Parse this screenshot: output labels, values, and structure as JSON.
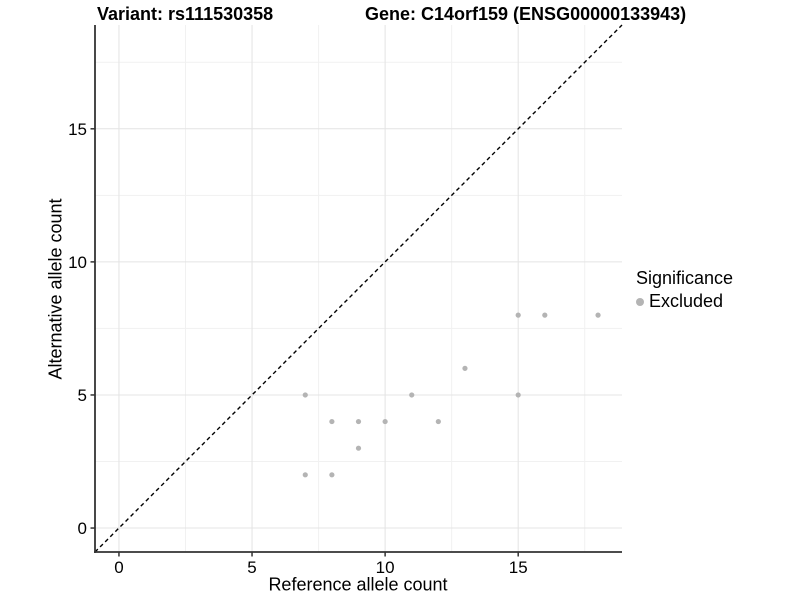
{
  "header": {
    "variant_title": "Variant: rs111530358",
    "gene_title": "Gene: C14orf159 (ENSG00000133943)"
  },
  "axes": {
    "x_label": "Reference allele count",
    "y_label": "Alternative allele count"
  },
  "legend": {
    "title": "Significance",
    "items": [
      {
        "label": "Excluded",
        "color": "#b4b4b4"
      }
    ]
  },
  "colors": {
    "background": "#ffffff",
    "point": "#b4b4b4",
    "grid_major": "#e4e4e4",
    "grid_minor": "#f1f1f1",
    "axis_line": "#333333",
    "reference_line": "#000000",
    "text": "#000000"
  },
  "chart_data": {
    "type": "scatter",
    "title": "Variant: rs111530358    Gene: C14orf159 (ENSG00000133943)",
    "xlabel": "Reference allele count",
    "ylabel": "Alternative allele count",
    "xlim": [
      -0.9,
      18.9
    ],
    "ylim": [
      -0.9,
      18.9
    ],
    "xticks": [
      0,
      5,
      10,
      15
    ],
    "yticks": [
      0,
      5,
      10,
      15
    ],
    "x_minor_ticks": [
      2.5,
      7.5,
      12.5,
      17.5
    ],
    "y_minor_ticks": [
      2.5,
      7.5,
      12.5,
      17.5
    ],
    "grid": true,
    "legend_position": "right",
    "reference_line": {
      "type": "identity",
      "slope": 1,
      "intercept": 0,
      "style": "dashed"
    },
    "series": [
      {
        "name": "Excluded",
        "color": "#b4b4b4",
        "points": [
          [
            7,
            2
          ],
          [
            7,
            5
          ],
          [
            8,
            2
          ],
          [
            8,
            4
          ],
          [
            9,
            3
          ],
          [
            9,
            4
          ],
          [
            10,
            4
          ],
          [
            11,
            5
          ],
          [
            12,
            4
          ],
          [
            13,
            6
          ],
          [
            15,
            5
          ],
          [
            15,
            8
          ],
          [
            16,
            8
          ],
          [
            18,
            8
          ]
        ]
      }
    ]
  }
}
